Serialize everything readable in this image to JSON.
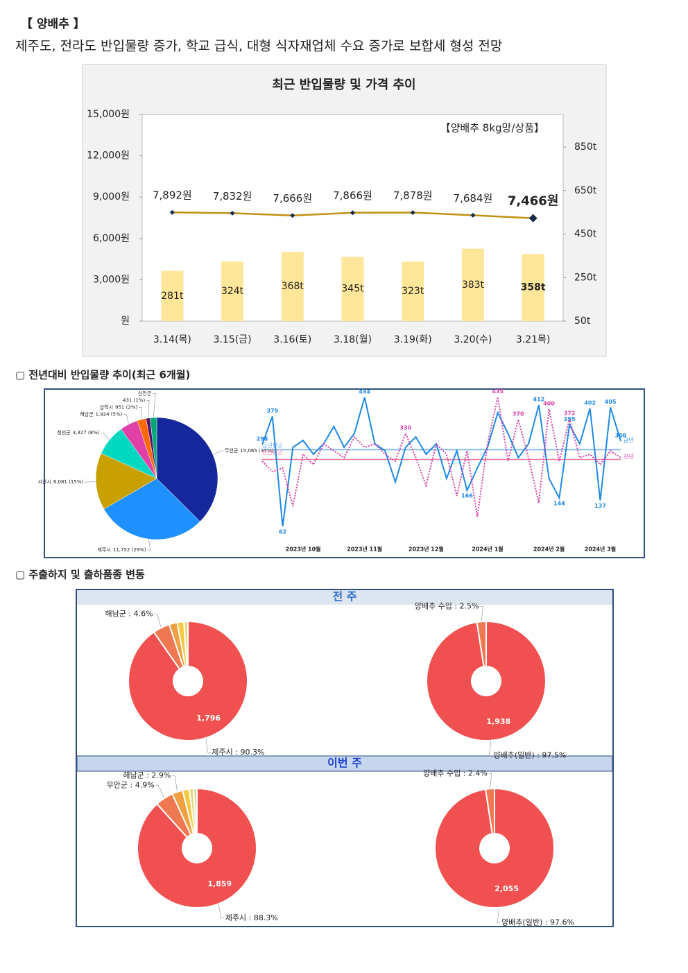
{
  "header": {
    "title": "【 양배추 】",
    "subtitle": "제주도, 전라도 반입물량 증가, 학교 급식, 대형 식자재업체 수요 증가로 보합세 형성 전망"
  },
  "sections": [
    "▢ 전년대비 반입물량 추이(최근 6개월)",
    "▢ 주출하지 및 출하품종 변동"
  ],
  "week_headers": [
    "전 주",
    "이번 주"
  ],
  "chart_data": [
    {
      "type": "bar_line",
      "title": "최근 반입물량 및 가격 추이",
      "note": "【양배추 8kg망/상품】",
      "categories": [
        "3.14(목)",
        "3.15(금)",
        "3.16(토)",
        "3.18(월)",
        "3.19(화)",
        "3.20(수)",
        "3.21목)"
      ],
      "series": [
        {
          "kind": "line",
          "color": "#c09010",
          "marker_color": "#1a2a4a",
          "values": [
            7892,
            7832,
            7666,
            7866,
            7878,
            7684,
            7466
          ],
          "value_labels": [
            "7,892원",
            "7,832원",
            "7,666원",
            "7,866원",
            "7,878원",
            "7,684원",
            "7,466원"
          ]
        },
        {
          "kind": "bar",
          "axis": "y2",
          "color": "#ffe699",
          "values": [
            281,
            324,
            368,
            345,
            323,
            383,
            358
          ],
          "value_labels": [
            "281t",
            "324t",
            "368t",
            "345t",
            "323t",
            "383t",
            "358t"
          ]
        }
      ],
      "highlight_last": true,
      "ylim": [
        0,
        15000
      ],
      "yticks": [
        {
          "value": 0,
          "label": "원"
        },
        {
          "value": 3000,
          "label": "3,000원"
        },
        {
          "value": 6000,
          "label": "6,000원"
        },
        {
          "value": 9000,
          "label": "9,000원"
        },
        {
          "value": 12000,
          "label": "12,000원"
        },
        {
          "value": 15000,
          "label": "15,000원"
        }
      ],
      "y2lim": [
        50,
        1000
      ],
      "y2ticks": [
        {
          "value": 50,
          "label": "50t"
        },
        {
          "value": 250,
          "label": "250t"
        },
        {
          "value": 450,
          "label": "450t"
        },
        {
          "value": 650,
          "label": "650t"
        },
        {
          "value": 850,
          "label": "850t"
        }
      ]
    },
    {
      "type": "pie",
      "categories": [
        "무안군",
        "제주시",
        "서산시",
        "청선군",
        "해남군",
        "삼척시",
        null,
        "신안군"
      ],
      "values": [
        15065,
        11752,
        6081,
        3327,
        1924,
        951,
        431,
        700
      ],
      "value_labels": [
        "15,065 (37%)",
        "11,752 (29%)",
        "6,081 (15%)",
        "3,327 (8%)",
        "1,924 (5%)",
        "951 (2%)",
        "431 (1%)",
        null
      ],
      "colors": [
        "#14279b",
        "#1e90ff",
        "#c8a000",
        "#00d8c0",
        "#e040a8",
        "#ff6a00",
        "#5a1070",
        "#00a878"
      ]
    },
    {
      "type": "line",
      "categories": [
        null,
        null,
        null,
        null,
        "2023년 10월",
        null,
        null,
        null,
        null,
        null,
        "2023년 11월",
        null,
        null,
        null,
        null,
        null,
        "2023년 12월",
        null,
        null,
        null,
        null,
        null,
        "2024년 1월",
        null,
        null,
        null,
        null,
        null,
        "2024년 2월",
        null,
        null,
        null,
        null,
        "2024년 3월",
        null,
        null
      ],
      "ylim": [
        20,
        440
      ],
      "series": [
        {
          "name": "금년",
          "color": "#1e88e5",
          "style": "solid",
          "values": [
            298,
            379,
            62,
            290,
            310,
            270,
            300,
            350,
            290,
            330,
            434,
            300,
            280,
            190,
            290,
            320,
            270,
            300,
            200,
            280,
            166,
            230,
            290,
            390,
            330,
            260,
            300,
            412,
            200,
            144,
            355,
            300,
            402,
            137,
            405,
            308
          ],
          "value_labels": [
            "298",
            "379",
            "62",
            null,
            null,
            null,
            null,
            null,
            null,
            null,
            "434",
            null,
            null,
            null,
            null,
            null,
            null,
            null,
            null,
            null,
            "166",
            null,
            null,
            null,
            null,
            null,
            null,
            "412",
            null,
            "144",
            "355",
            null,
            "402",
            "137",
            "405",
            "308"
          ]
        },
        {
          "name": "전년",
          "color": "#d63fa8",
          "style": "dotted",
          "values": [
            250,
            220,
            230,
            120,
            270,
            240,
            300,
            280,
            260,
            320,
            290,
            300,
            270,
            250,
            330,
            260,
            180,
            300,
            270,
            150,
            280,
            90,
            300,
            435,
            250,
            370,
            260,
            130,
            400,
            250,
            372,
            260,
            270,
            240,
            280,
            260
          ],
          "value_labels": [
            null,
            null,
            null,
            null,
            null,
            null,
            null,
            null,
            null,
            null,
            null,
            null,
            null,
            null,
            "330",
            null,
            null,
            null,
            null,
            null,
            null,
            null,
            null,
            "435",
            null,
            "370",
            null,
            null,
            "400",
            null,
            "372",
            null,
            null,
            null,
            null,
            null
          ]
        }
      ],
      "reference_lines": [
        {
          "label": "금년평균",
          "value": 283,
          "color": "#6aaef5"
        },
        {
          "label": "전년평균",
          "value": 255,
          "color": "#f07898"
        }
      ]
    },
    {
      "type": "donut",
      "values": [
        90.3,
        4.6,
        2.2,
        1.8,
        1.1
      ],
      "value_labels": [
        "제주시 : 90.3%",
        "해남군 : 4.6%",
        null,
        null,
        null
      ],
      "inner_label": {
        "value": 1796,
        "label": "1,796"
      },
      "colors": [
        "#f05050",
        "#f07850",
        "#f0a040",
        "#f5c842",
        "#e8d880"
      ]
    },
    {
      "type": "donut",
      "values": [
        97.5,
        2.5
      ],
      "value_labels": [
        "양배추(일반) : 97.5%",
        "양배추 수입 : 2.5%"
      ],
      "inner_label": {
        "value": 1938,
        "label": "1,938"
      },
      "colors": [
        "#f05050",
        "#f07850"
      ]
    },
    {
      "type": "donut",
      "values": [
        88.3,
        4.9,
        2.9,
        1.8,
        1.2,
        0.9
      ],
      "value_labels": [
        "제주시 : 88.3%",
        "무안군 : 4.9%",
        "해남군 : 2.9%",
        null,
        null,
        null
      ],
      "inner_label": {
        "value": 1859,
        "label": "1,859"
      },
      "colors": [
        "#f05050",
        "#f07850",
        "#f0a040",
        "#f5c842",
        "#e8d880",
        "#c8d8a0"
      ]
    },
    {
      "type": "donut",
      "values": [
        97.6,
        2.4
      ],
      "value_labels": [
        "양배추(일반) : 97.6%",
        "양배추 수입 : 2.4%"
      ],
      "inner_label": {
        "value": 2055,
        "label": "2,055"
      },
      "colors": [
        "#f05050",
        "#f07850"
      ]
    }
  ]
}
